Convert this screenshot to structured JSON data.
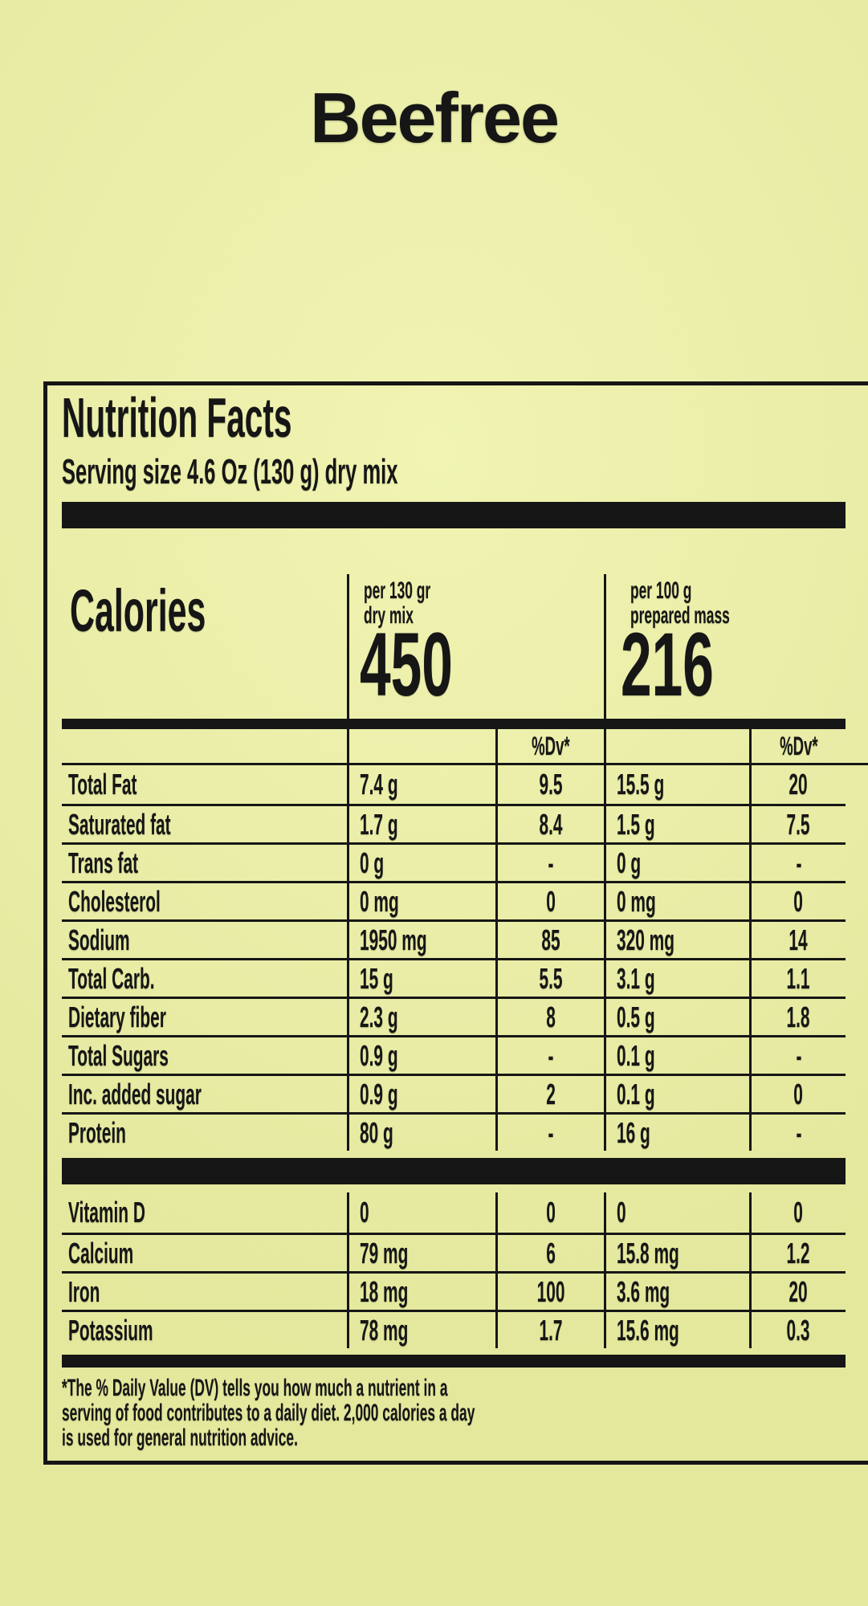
{
  "brand": {
    "title": "Beefree"
  },
  "label": {
    "title": "Nutrition Facts",
    "serving": "Serving size 4.6 Oz (130 g) dry mix",
    "calories": {
      "heading": "Calories",
      "columns": [
        {
          "caption_line1": "per 130 gr",
          "caption_line2": "dry mix",
          "value": "450"
        },
        {
          "caption_line1": "per 100 g",
          "caption_line2": "prepared mass",
          "value": "216"
        }
      ]
    },
    "table": {
      "dv_header": "%Dv*",
      "main_rows": [
        [
          "Total Fat",
          "7.4 g",
          "9.5",
          "15.5 g",
          "20"
        ],
        [
          "Saturated fat",
          "1.7 g",
          "8.4",
          "1.5 g",
          "7.5"
        ],
        [
          "Trans fat",
          "0 g",
          "-",
          "0 g",
          "-"
        ],
        [
          "Cholesterol",
          "0 mg",
          "0",
          "0 mg",
          "0"
        ],
        [
          "Sodium",
          "1950 mg",
          "85",
          "320 mg",
          "14"
        ],
        [
          "Total Carb.",
          "15 g",
          "5.5",
          "3.1 g",
          "1.1"
        ],
        [
          "Dietary fiber",
          "2.3 g",
          "8",
          "0.5 g",
          "1.8"
        ],
        [
          "Total Sugars",
          "0.9 g",
          "-",
          "0.1 g",
          "-"
        ],
        [
          "Inc. added sugar",
          "0.9 g",
          "2",
          "0.1 g",
          "0"
        ],
        [
          "Protein",
          "80 g",
          "-",
          "16 g",
          "-"
        ]
      ],
      "vitamin_rows": [
        [
          "Vitamin D",
          "0",
          "0",
          "0",
          "0"
        ],
        [
          "Calcium",
          "79 mg",
          "6",
          "15.8 mg",
          "1.2"
        ],
        [
          "Iron",
          "18 mg",
          "100",
          "3.6 mg",
          "20"
        ],
        [
          "Potassium",
          "78 mg",
          "1.7",
          "15.6 mg",
          "0.3"
        ]
      ]
    },
    "footnote_lines": [
      "*The % Daily Value (DV) tells you how much a nutrient in a",
      "serving of food contributes to a daily diet. 2,000 calories a day",
      "is used for general nutrition advice."
    ]
  },
  "colors": {
    "background": "#e9eda7",
    "ink": "#161616"
  }
}
